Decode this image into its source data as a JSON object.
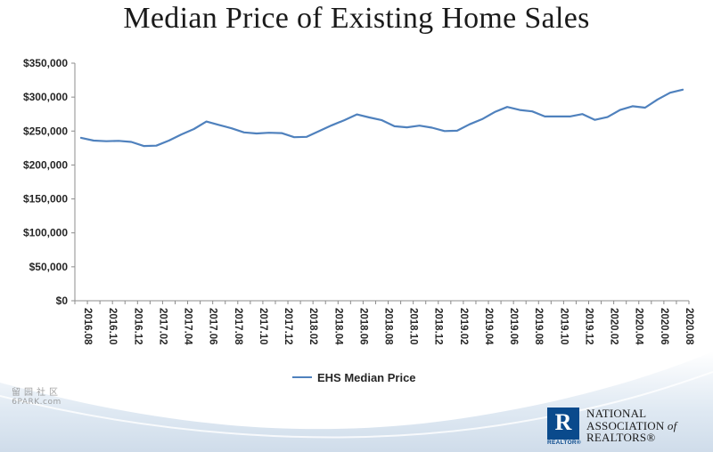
{
  "chart_data": {
    "type": "line",
    "title": "Median Price of Existing Home Sales",
    "xlabel": "",
    "ylabel": "",
    "ylim": [
      0,
      350000
    ],
    "yticks": [
      "$0",
      "$50,000",
      "$100,000",
      "$150,000",
      "$200,000",
      "$250,000",
      "$300,000",
      "$350,000"
    ],
    "ytick_values": [
      0,
      50000,
      100000,
      150000,
      200000,
      250000,
      300000,
      350000
    ],
    "x": [
      "2016.08",
      "2016.09",
      "2016.10",
      "2016.11",
      "2016.12",
      "2017.01",
      "2017.02",
      "2017.03",
      "2017.04",
      "2017.05",
      "2017.06",
      "2017.07",
      "2017.08",
      "2017.09",
      "2017.10",
      "2017.11",
      "2017.12",
      "2018.01",
      "2018.02",
      "2018.03",
      "2018.04",
      "2018.05",
      "2018.06",
      "2018.07",
      "2018.08",
      "2018.09",
      "2018.10",
      "2018.11",
      "2018.12",
      "2019.01",
      "2019.02",
      "2019.03",
      "2019.04",
      "2019.05",
      "2019.06",
      "2019.07",
      "2019.08",
      "2019.09",
      "2019.10",
      "2019.11",
      "2019.12",
      "2020.01",
      "2020.02",
      "2020.03",
      "2020.04",
      "2020.05",
      "2020.06",
      "2020.07",
      "2020.08"
    ],
    "xtick_labels": [
      "2016.08",
      "2016.10",
      "2016.12",
      "2017.02",
      "2017.04",
      "2017.06",
      "2017.08",
      "2017.10",
      "2017.12",
      "2018.02",
      "2018.04",
      "2018.06",
      "2018.08",
      "2018.10",
      "2018.12",
      "2019.02",
      "2019.04",
      "2019.06",
      "2019.08",
      "2019.10",
      "2019.12",
      "2020.02",
      "2020.04",
      "2020.06",
      "2020.08"
    ],
    "series": [
      {
        "name": "EHS Median Price",
        "color": "#4f81bd",
        "values": [
          240000,
          236000,
          235000,
          235500,
          234000,
          228000,
          228500,
          236000,
          245000,
          253000,
          264000,
          259000,
          254000,
          248000,
          246500,
          247500,
          247000,
          241000,
          241500,
          250000,
          258500,
          266000,
          274500,
          270000,
          266000,
          257000,
          255500,
          258000,
          255000,
          250000,
          250500,
          260000,
          267500,
          278000,
          285500,
          281000,
          279000,
          271500,
          271500,
          271500,
          275000,
          266500,
          270500,
          281000,
          286500,
          284500,
          296500,
          306500,
          311000
        ]
      }
    ],
    "grid": false,
    "legend_position": "bottom-center"
  },
  "legend": {
    "label": "EHS Median Price"
  },
  "watermark": {
    "chars": "留园社区",
    "url": "6PARK.com"
  },
  "logo": {
    "mark_letter": "R",
    "mark_caption": "REALTOR®",
    "line1": "NATIONAL",
    "line2_a": "ASSOCIATION",
    "line2_b": "of",
    "line3": "REALTORS®",
    "color": "#0a4a8c"
  }
}
